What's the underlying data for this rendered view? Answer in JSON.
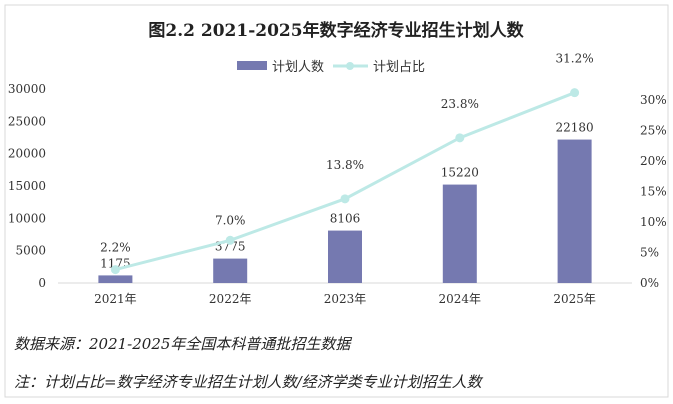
{
  "chart_data": {
    "type": "bar+line",
    "title": "图2.2  2021-2025年数字经济专业招生计划人数",
    "categories": [
      "2021年",
      "2022年",
      "2023年",
      "2024年",
      "2025年"
    ],
    "series": [
      {
        "name": "计划人数",
        "type": "bar",
        "axis": "left",
        "values": [
          1175,
          3775,
          8106,
          15220,
          22180
        ],
        "labels": [
          "1175",
          "3775",
          "8106",
          "15220",
          "22180"
        ],
        "color": "#7579b0"
      },
      {
        "name": "计划占比",
        "type": "line",
        "axis": "right",
        "values": [
          2.2,
          7.0,
          13.8,
          23.8,
          31.2
        ],
        "labels": [
          "2.2%",
          "7.0%",
          "13.8%",
          "23.8%",
          "31.2%"
        ],
        "color": "#bde9e6"
      }
    ],
    "left_axis": {
      "ylim": [
        0,
        30000
      ],
      "ticks": [
        "0",
        "5000",
        "10000",
        "15000",
        "20000",
        "25000",
        "30000"
      ]
    },
    "right_axis": {
      "ylim": [
        0,
        30
      ],
      "ticks": [
        "0%",
        "5%",
        "10%",
        "15%",
        "20%",
        "25%",
        "30%"
      ]
    },
    "legend": "top-center",
    "grid": false
  },
  "notes": {
    "source": "数据来源：2021-2025年全国本科普通批招生数据",
    "formula": "注：计划占比=数字经济专业招生计划人数/经济学类专业计划招生人数"
  }
}
